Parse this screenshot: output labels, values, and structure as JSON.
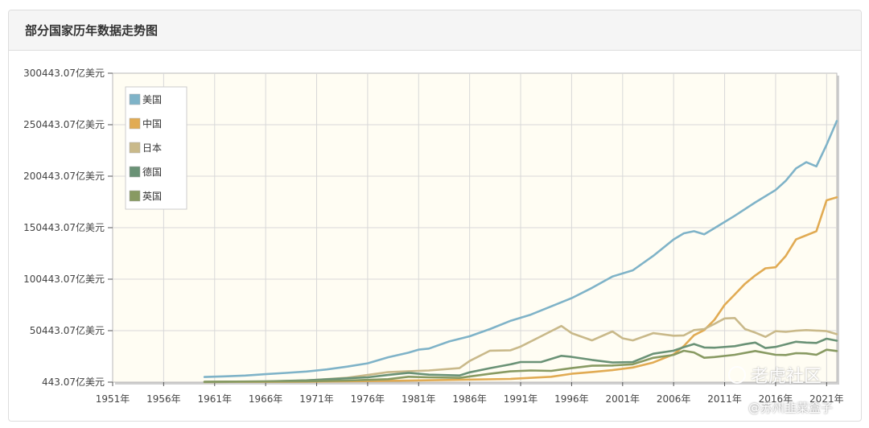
{
  "panel": {
    "title": "部分国家历年数据走势图"
  },
  "watermark": {
    "logo_text": "老虎社区",
    "handle": "@苏州韭菜盒子"
  },
  "chart_data": {
    "type": "line",
    "title": "",
    "xlabel": "",
    "ylabel": "",
    "x_ticks": [
      "1951年",
      "1956年",
      "1961年",
      "1966年",
      "1971年",
      "1976年",
      "1981年",
      "1986年",
      "1991年",
      "1996年",
      "2001年",
      "2006年",
      "2011年",
      "2016年",
      "2021年"
    ],
    "y_ticks": [
      "443.07亿美元",
      "50443.07亿美元",
      "100443.07亿美元",
      "150443.07亿美元",
      "200443.07亿美元",
      "250443.07亿美元",
      "300443.07亿美元"
    ],
    "xlim": [
      1951,
      2022
    ],
    "ylim": [
      443.07,
      300443.07
    ],
    "grid": true,
    "legend_position": "top-left",
    "plot_background": "#fffdf3",
    "series": [
      {
        "name": "美国",
        "color": "#7fb3c8",
        "x": [
          1960,
          1962,
          1964,
          1966,
          1968,
          1970,
          1972,
          1974,
          1976,
          1978,
          1980,
          1981,
          1982,
          1984,
          1986,
          1988,
          1990,
          1992,
          1994,
          1996,
          1998,
          2000,
          2002,
          2004,
          2006,
          2007,
          2008,
          2009,
          2010,
          2012,
          2014,
          2016,
          2017,
          2018,
          2019,
          2020,
          2021,
          2022
        ],
        "y": [
          5430,
          6050,
          6850,
          8150,
          9400,
          10730,
          12800,
          15500,
          18700,
          24600,
          29000,
          32000,
          33000,
          40000,
          45000,
          52000,
          60000,
          66000,
          74000,
          82000,
          92000,
          103000,
          109000,
          123000,
          139000,
          145000,
          147000,
          144000,
          150000,
          162000,
          175000,
          187000,
          196000,
          208000,
          214000,
          210000,
          231000,
          254000
        ]
      },
      {
        "name": "中国",
        "color": "#e1ab53",
        "x": [
          1960,
          1970,
          1980,
          1990,
          1994,
          1996,
          1998,
          2000,
          2002,
          2004,
          2006,
          2007,
          2008,
          2009,
          2010,
          2011,
          2012,
          2013,
          2014,
          2015,
          2016,
          2017,
          2018,
          2019,
          2020,
          2021,
          2022
        ],
        "y": [
          600,
          930,
          1900,
          3600,
          5640,
          8600,
          10300,
          12100,
          14700,
          19500,
          27500,
          35500,
          46000,
          51000,
          61000,
          75500,
          85600,
          96000,
          104000,
          111000,
          112000,
          123000,
          139000,
          143000,
          147000,
          177000,
          180000
        ]
      },
      {
        "name": "日本",
        "color": "#c9b98a",
        "x": [
          1960,
          1966,
          1970,
          1974,
          1978,
          1980,
          1982,
          1985,
          1986,
          1988,
          1990,
          1991,
          1993,
          1995,
          1996,
          1998,
          2000,
          2001,
          2002,
          2004,
          2006,
          2007,
          2008,
          2009,
          2010,
          2011,
          2012,
          2013,
          2014,
          2015,
          2016,
          2017,
          2018,
          2019,
          2020,
          2021,
          2022
        ],
        "y": [
          440,
          1000,
          2100,
          4700,
          10100,
          11100,
          11800,
          14000,
          21000,
          31000,
          31400,
          35000,
          45000,
          55000,
          48000,
          41000,
          49700,
          43000,
          41000,
          48000,
          45500,
          45800,
          51000,
          52000,
          57000,
          62300,
          62700,
          52000,
          48600,
          44400,
          50000,
          49300,
          50400,
          51000,
          50500,
          50000,
          47000
        ]
      },
      {
        "name": "德国",
        "color": "#6a9276",
        "x": [
          1960,
          1966,
          1970,
          1974,
          1976,
          1978,
          1980,
          1982,
          1985,
          1986,
          1988,
          1990,
          1991,
          1993,
          1995,
          1996,
          1998,
          2000,
          2002,
          2004,
          2006,
          2007,
          2008,
          2009,
          2010,
          2012,
          2013,
          2014,
          2015,
          2016,
          2018,
          2019,
          2020,
          2021,
          2022
        ],
        "y": [
          720,
          1200,
          2150,
          4200,
          5100,
          7400,
          9500,
          7700,
          6900,
          10000,
          14000,
          17700,
          20000,
          20000,
          26000,
          25000,
          22000,
          19500,
          20000,
          28000,
          31000,
          34400,
          37500,
          34100,
          33900,
          35400,
          37300,
          38900,
          33600,
          34700,
          39700,
          38900,
          38500,
          42600,
          40700
        ]
      },
      {
        "name": "英国",
        "color": "#889a62",
        "x": [
          1960,
          1966,
          1970,
          1974,
          1978,
          1980,
          1982,
          1985,
          1988,
          1990,
          1992,
          1994,
          1996,
          1998,
          2000,
          2002,
          2004,
          2006,
          2007,
          2008,
          2009,
          2010,
          2012,
          2014,
          2016,
          2017,
          2018,
          2019,
          2020,
          2021,
          2022
        ],
        "y": [
          730,
          1090,
          1310,
          2000,
          3350,
          5640,
          5100,
          4600,
          8600,
          10900,
          11800,
          11400,
          14000,
          16400,
          16600,
          17800,
          24000,
          26900,
          30900,
          29300,
          24100,
          24800,
          27000,
          30700,
          27000,
          26800,
          28600,
          28300,
          27000,
          31900,
          30700
        ]
      }
    ]
  }
}
